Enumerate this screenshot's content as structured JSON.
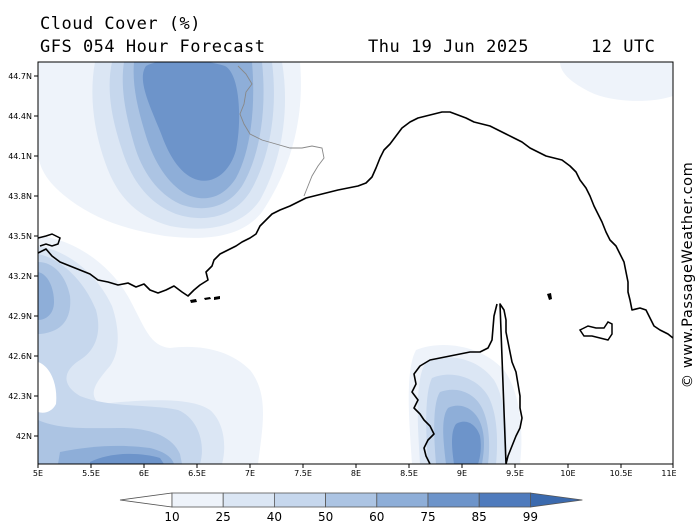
{
  "title": {
    "variable": "Cloud Cover (%)",
    "model": "GFS 054 Hour Forecast",
    "date": "Thu 19 Jun 2025",
    "time": "12 UTC"
  },
  "credit": "© www.PassageWeather.com",
  "lat_labels": [
    "44.7N",
    "44.4N",
    "44.1N",
    "43.8N",
    "43.5N",
    "43.2N",
    "42.9N",
    "42.6N",
    "42.3N",
    "42N"
  ],
  "lon_labels": [
    "5E",
    "5.5E",
    "6E",
    "6.5E",
    "7E",
    "7.5E",
    "8E",
    "8.5E",
    "9E",
    "9.5E",
    "10E",
    "10.5E",
    "11E"
  ],
  "colorbar": {
    "levels": [
      "10",
      "25",
      "40",
      "50",
      "60",
      "75",
      "85",
      "99"
    ],
    "colors": [
      "#ffffff",
      "#eef3fa",
      "#dbe6f4",
      "#c6d7ed",
      "#acc4e3",
      "#8eaed8",
      "#6d94ca",
      "#4f7bbd",
      "#3b6aae"
    ]
  }
}
